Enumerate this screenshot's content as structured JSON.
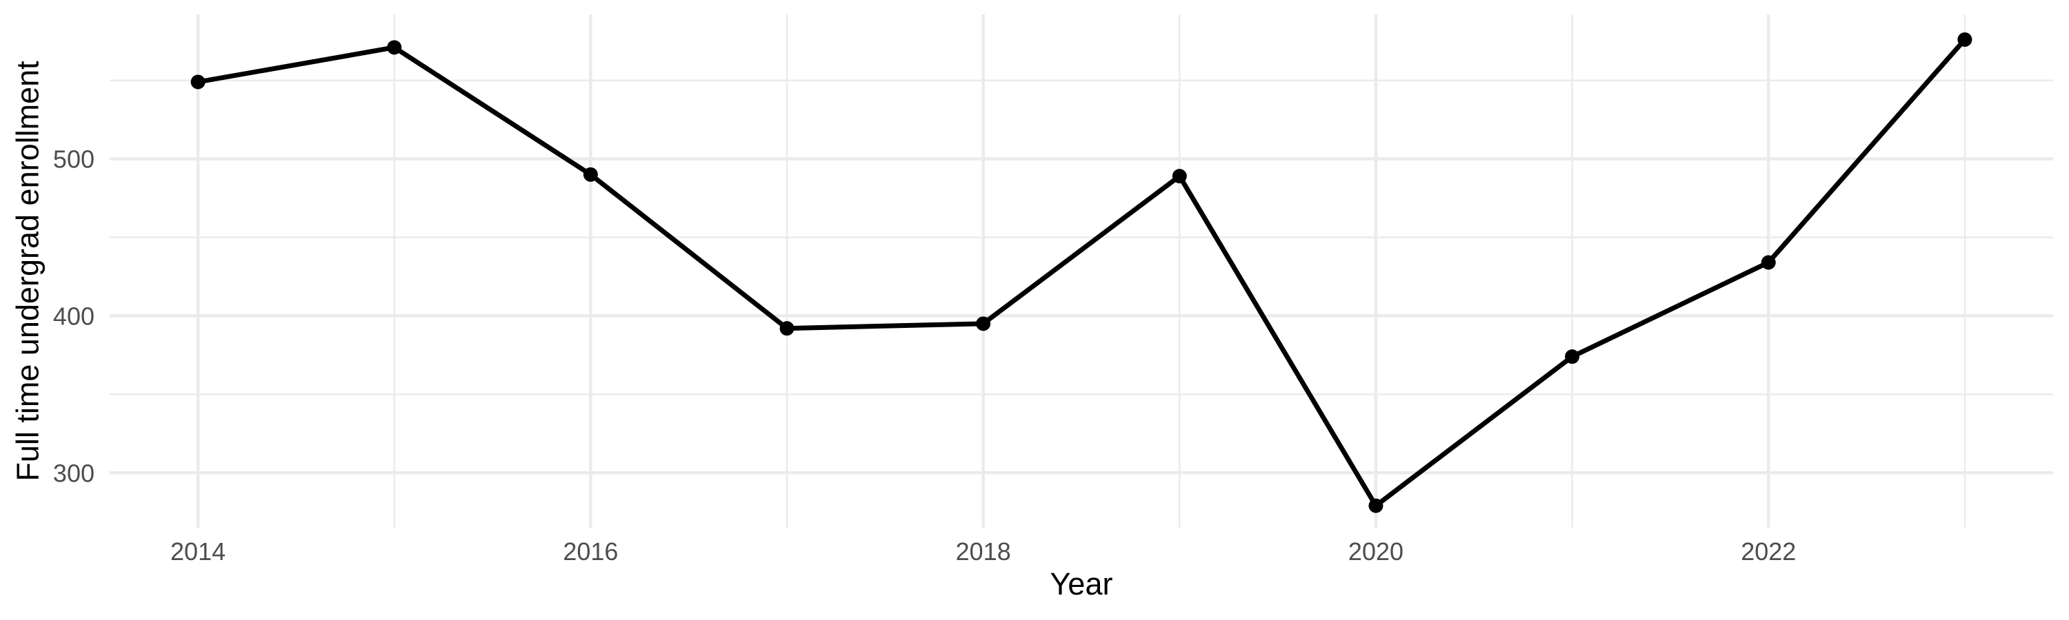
{
  "chart_data": {
    "type": "line",
    "title": "",
    "xlabel": "Year",
    "ylabel": "Full time undergrad enrollment",
    "x": [
      2014,
      2015,
      2016,
      2017,
      2018,
      2019,
      2020,
      2021,
      2022,
      2023
    ],
    "values": [
      549,
      571,
      490,
      392,
      395,
      489,
      279,
      374,
      434,
      576
    ],
    "series_name": "Full time undergrad enrollment",
    "x_major_ticks": [
      2014,
      2016,
      2018,
      2020,
      2022
    ],
    "x_minor_gridlines": [
      2015,
      2017,
      2019,
      2021,
      2023
    ],
    "y_major_ticks": [
      300,
      400,
      500
    ],
    "y_minor_gridlines": [
      350,
      450,
      550
    ],
    "xlim": [
      2013.55,
      2023.45
    ],
    "ylim": [
      265,
      592
    ],
    "grid": true,
    "legend": "none",
    "colors": {
      "line": "#000000",
      "point": "#000000",
      "grid_major": "#EBEBEB",
      "grid_minor": "#EBEBEB",
      "tick_text": "#4D4D4D",
      "axis_title_text": "#000000",
      "background": "#FFFFFF"
    }
  }
}
